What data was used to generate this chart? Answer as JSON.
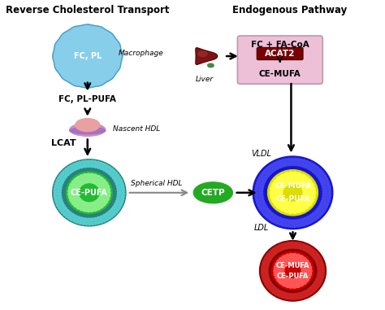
{
  "title_left": "Reverse Cholesterol Transport",
  "title_right": "Endogenous Pathway",
  "bg_color": "#ffffff",
  "macrophage_text": "FC, PL",
  "macrophage_label": "Macrophage",
  "fc_pl_pufa": "FC, PL-PUFA",
  "nascent_hdl_label": "Nascent HDL",
  "lcat_label": "LCAT",
  "spherical_hdl_label": "Spherical HDL",
  "cetp_label": "CETP",
  "vldl_label": "VLDL",
  "ldl_label": "LDL",
  "liver_label": "Liver",
  "fc_facoa": "FC + FA-CoA",
  "acat2": "ACAT2",
  "ce_mufa_box": "CE-MUFA",
  "vldl_text1": "CE-MUFA",
  "vldl_text2": "CE-PUFA",
  "ldl_text1": "CE-MUFA",
  "ldl_text2": "CE-PUFA",
  "hdl_text": "CE-PUFA",
  "macrophage_color": "#87CEEB",
  "macrophage_edge": "#4A9EC0",
  "hdl_outer_color": "#2A8080",
  "hdl_dot_color": "#55CCCC",
  "hdl_inner_color": "#22BB33",
  "hdl_inner_dot": "#88EE88",
  "vldl_outer_color": "#1515CC",
  "vldl_dot_color": "#4444EE",
  "vldl_inner_color": "#DDDD00",
  "vldl_inner_dot": "#FFFF44",
  "ldl_outer_color": "#880000",
  "ldl_dot_color": "#CC2222",
  "ldl_inner_color": "#CC0000",
  "ldl_inner_dot": "#FF5555",
  "cetp_color": "#22AA22",
  "box_facecolor": "#EEC0D8",
  "box_edgecolor": "#BB99AA",
  "acat2_color": "#7B0000",
  "liver_color": "#7B1515",
  "liver_highlight": "#A03030"
}
